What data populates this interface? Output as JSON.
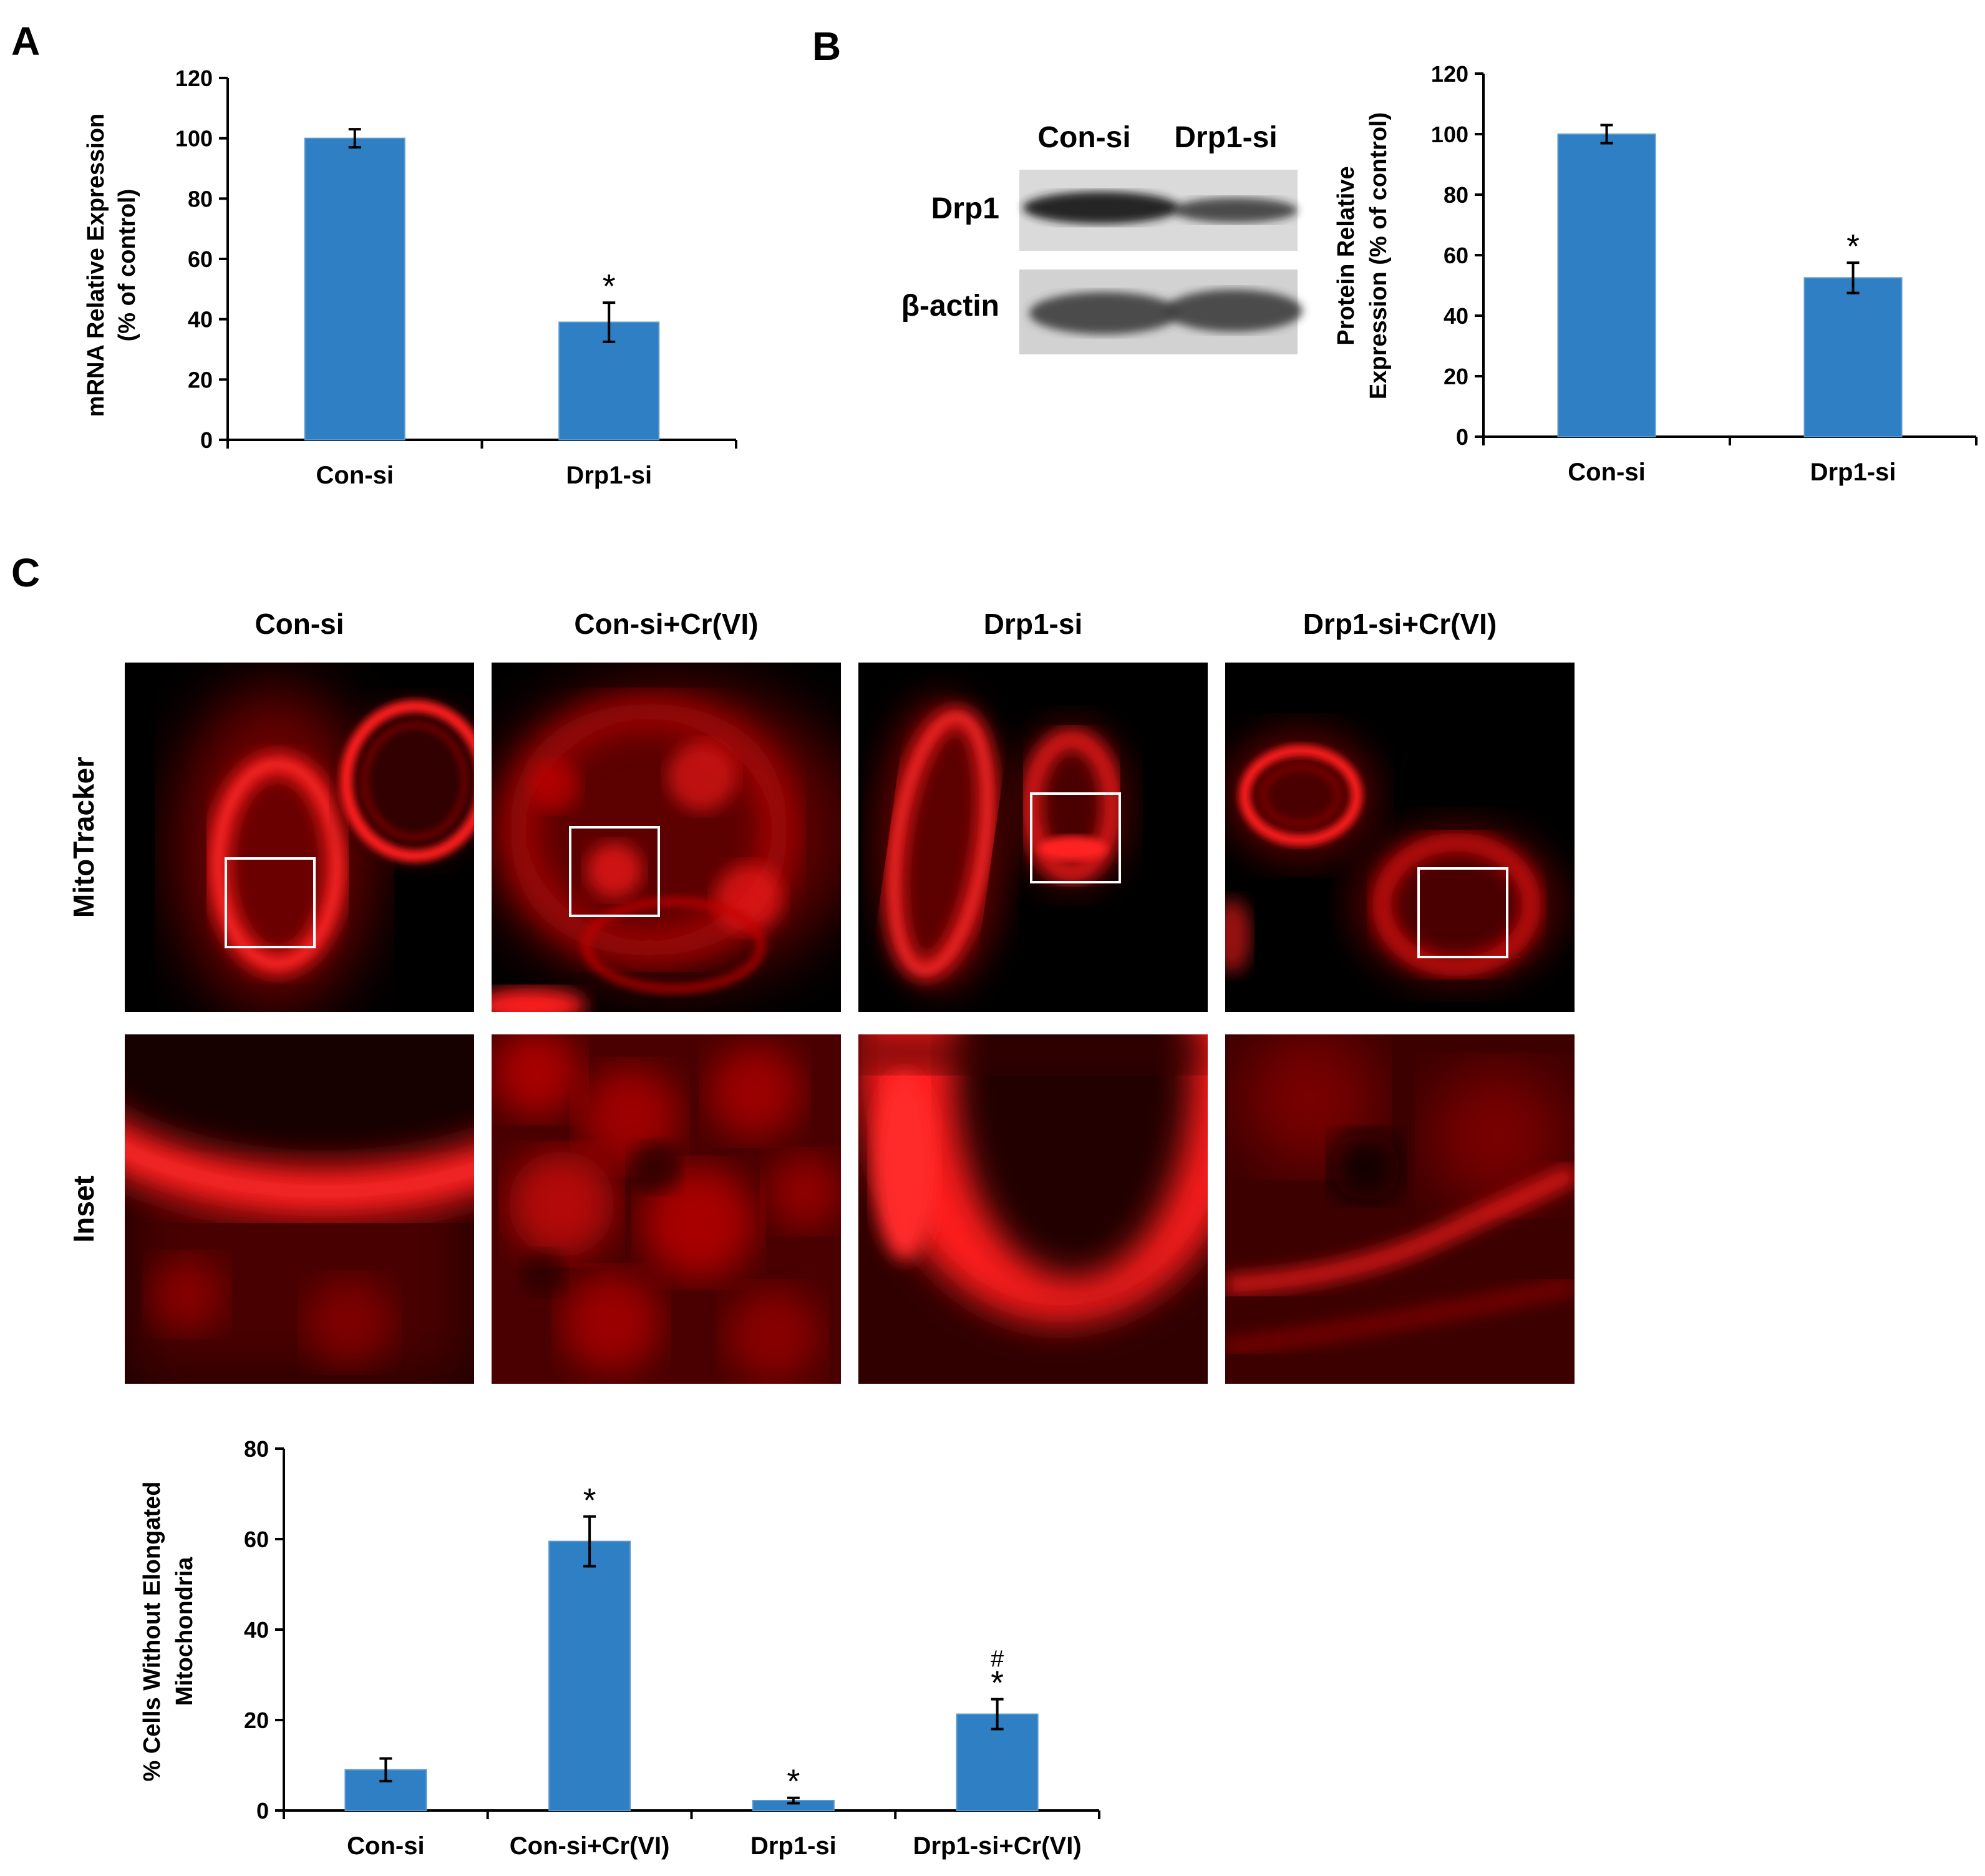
{
  "panels": {
    "a_letter": "A",
    "b_letter": "B",
    "c_letter": "C"
  },
  "blot": {
    "lanes": [
      "Con-si",
      "Drp1-si"
    ],
    "rows": [
      "Drp1",
      "β-actin"
    ],
    "band_intensity": {
      "Drp1": [
        0.95,
        0.75
      ],
      "β-actin": [
        0.9,
        0.9
      ]
    }
  },
  "microscopy": {
    "columns": [
      "Con-si",
      "Con-si+Cr(VI)",
      "Drp1-si",
      "Drp1-si+Cr(VI)"
    ],
    "rows": [
      "MitoTracker",
      "Inset"
    ],
    "stain_color": "#ff1a1a"
  },
  "chart_data": [
    {
      "id": "A",
      "type": "bar",
      "categories": [
        "Con-si",
        "Drp1-si"
      ],
      "values": [
        100,
        39
      ],
      "errors": [
        3,
        6.5
      ],
      "significance": [
        "",
        "*"
      ],
      "ylabel_lines": [
        "mRNA Relative Expression",
        "(% of  control)"
      ],
      "ylim": [
        0,
        120
      ],
      "yticks": [
        0,
        20,
        40,
        60,
        80,
        100,
        120
      ],
      "bar_color": "#2e7fc4"
    },
    {
      "id": "B",
      "type": "bar",
      "categories": [
        "Con-si",
        "Drp1-si"
      ],
      "values": [
        100,
        52.5
      ],
      "errors": [
        3,
        5
      ],
      "significance": [
        "",
        "*"
      ],
      "ylabel_lines": [
        "Protein Relative",
        "Expression (% of  control)"
      ],
      "ylim": [
        0,
        120
      ],
      "yticks": [
        0,
        20,
        40,
        60,
        80,
        100,
        120
      ],
      "bar_color": "#2e7fc4"
    },
    {
      "id": "C",
      "type": "bar",
      "categories": [
        "Con-si",
        "Con-si+Cr(VI)",
        "Drp1-si",
        "Drp1-si+Cr(VI)"
      ],
      "values": [
        9,
        59.5,
        2.2,
        21.3
      ],
      "errors": [
        2.5,
        5.5,
        0.6,
        3.3
      ],
      "significance": [
        "",
        "*",
        "*",
        "*"
      ],
      "significance_extra": [
        "",
        "",
        "",
        "#"
      ],
      "ylabel_lines": [
        "% Cells Without Elongated",
        "Mitochondria"
      ],
      "ylim": [
        0,
        80
      ],
      "yticks": [
        0,
        20,
        40,
        60,
        80
      ],
      "bar_color": "#2e7fc4"
    }
  ]
}
